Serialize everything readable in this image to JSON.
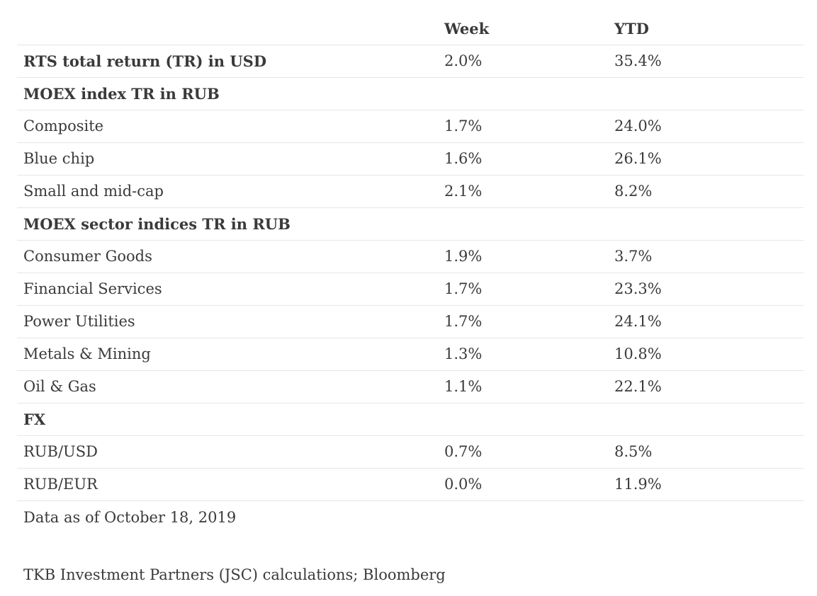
{
  "table": {
    "columns": [
      "",
      "Week",
      "YTD"
    ],
    "rows": [
      {
        "label": "RTS total return (TR) in USD",
        "week": "2.0%",
        "ytd": "35.4%",
        "bold": true
      },
      {
        "label": "MOEX index TR in RUB",
        "week": "",
        "ytd": "",
        "bold": true
      },
      {
        "label": "Composite",
        "week": "1.7%",
        "ytd": "24.0%",
        "bold": false
      },
      {
        "label": "Blue chip",
        "week": "1.6%",
        "ytd": "26.1%",
        "bold": false
      },
      {
        "label": "Small and mid-cap",
        "week": "2.1%",
        "ytd": "8.2%",
        "bold": false
      },
      {
        "label": "MOEX sector indices TR in RUB",
        "week": "",
        "ytd": "",
        "bold": true
      },
      {
        "label": "Consumer Goods",
        "week": "1.9%",
        "ytd": "3.7%",
        "bold": false
      },
      {
        "label": "Financial Services",
        "week": "1.7%",
        "ytd": "23.3%",
        "bold": false
      },
      {
        "label": "Power Utilities",
        "week": "1.7%",
        "ytd": "24.1%",
        "bold": false
      },
      {
        "label": "Metals & Mining",
        "week": "1.3%",
        "ytd": "10.8%",
        "bold": false
      },
      {
        "label": "Oil & Gas",
        "week": "1.1%",
        "ytd": "22.1%",
        "bold": false
      },
      {
        "label": "FX",
        "week": "",
        "ytd": "",
        "bold": true
      },
      {
        "label": "RUB/USD",
        "week": "0.7%",
        "ytd": "8.5%",
        "bold": false
      },
      {
        "label": "RUB/EUR",
        "week": "0.0%",
        "ytd": "11.9%",
        "bold": false
      }
    ]
  },
  "notes": {
    "as_of": "Data as of October 18, 2019",
    "source": "TKB Investment Partners (JSC) calculations; Bloomberg"
  },
  "colors": {
    "text": "#3a3a3a",
    "divider": "#e6e6e6",
    "background": "#ffffff"
  }
}
